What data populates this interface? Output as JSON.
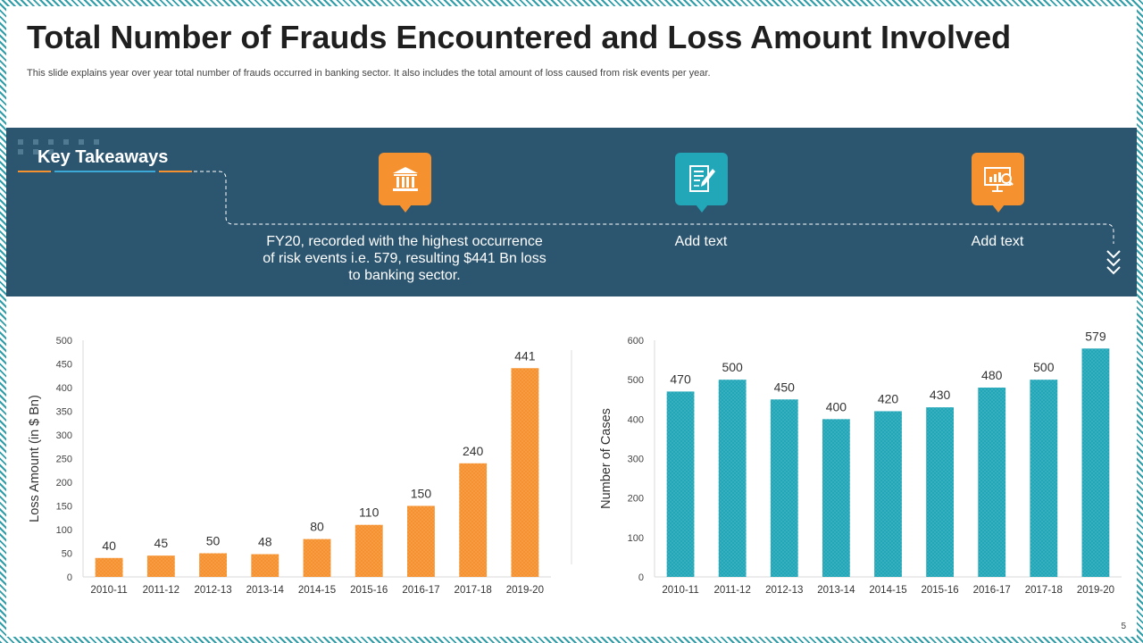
{
  "title": "Total Number of Frauds Encountered and Loss Amount Involved",
  "subtitle": "This slide explains year over year total number of frauds occurred in banking sector. It also includes the total amount of loss caused from risk events per year.",
  "takeaways": {
    "heading": "Key Takeaways",
    "items": [
      {
        "icon": "bank-icon",
        "text": "FY20, recorded with the highest occurrence of risk events i.e. 579, resulting $441 Bn loss to banking sector.",
        "color": "#f5922f"
      },
      {
        "icon": "document-edit-icon",
        "text": "Add text",
        "color": "#22a7b8"
      },
      {
        "icon": "presentation-search-icon",
        "text": "Add text",
        "color": "#f5922f"
      }
    ]
  },
  "page_number": "5",
  "chart_data": [
    {
      "type": "bar",
      "title": "",
      "ylabel": "Loss Amount (in $ Bn)",
      "xlabel": "",
      "categories": [
        "2010-11",
        "2011-12",
        "2012-13",
        "2013-14",
        "2014-15",
        "2015-16",
        "2016-17",
        "2017-18",
        "2019-20"
      ],
      "values": [
        40,
        45,
        50,
        48,
        80,
        110,
        150,
        240,
        441
      ],
      "ylim": [
        0,
        500
      ],
      "yticks": [
        0,
        50,
        100,
        150,
        200,
        250,
        300,
        350,
        400,
        450,
        500
      ],
      "color": "#f5922f",
      "grid": false
    },
    {
      "type": "bar",
      "title": "",
      "ylabel": "Number of Cases",
      "xlabel": "",
      "categories": [
        "2010-11",
        "2011-12",
        "2012-13",
        "2013-14",
        "2014-15",
        "2015-16",
        "2016-17",
        "2017-18",
        "2019-20"
      ],
      "values": [
        470,
        500,
        450,
        400,
        420,
        430,
        480,
        500,
        579
      ],
      "ylim": [
        0,
        600
      ],
      "yticks": [
        0,
        100,
        200,
        300,
        400,
        500,
        600
      ],
      "color": "#22a7b8",
      "grid": false
    }
  ]
}
